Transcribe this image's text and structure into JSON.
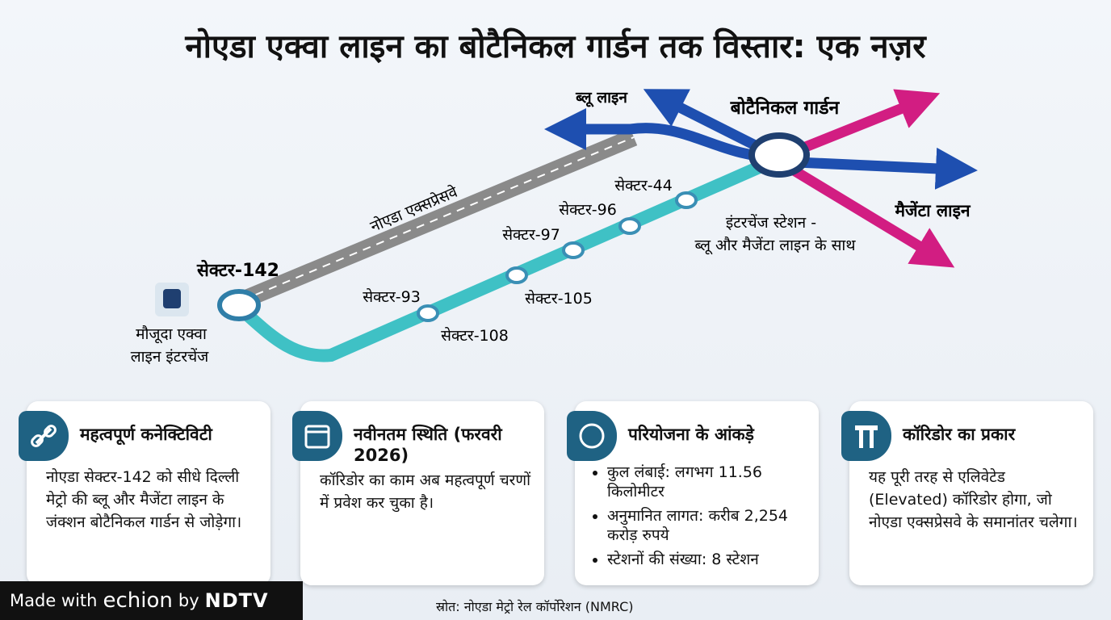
{
  "title": "नोएडा एक्वा लाइन का बोटैनिकल गार्डन तक विस्तार: एक नज़र",
  "map": {
    "blue_line": "ब्लू लाइन",
    "magenta_line": "मैजेंटा लाइन",
    "terminal": "बोटैनिकल गार्डन",
    "interchange_note": [
      "इंटरचेंज स्टेशन -",
      "ब्लू और मैजेंटा लाइन के साथ"
    ],
    "expressway": "नोएडा एक्सप्रेसवे",
    "start": "सेक्टर-142",
    "start_note": [
      "मौजूदा एक्वा",
      "लाइन इंटरचेंज"
    ],
    "stations": [
      "सेक्टर-93",
      "सेक्टर-108",
      "सेक्टर-105",
      "सेक्टर-97",
      "सेक्टर-96",
      "सेक्टर-44"
    ]
  },
  "cards": [
    {
      "title": "महत्वपूर्ण कनेक्टिविटी",
      "body": "नोएडा सेक्टर-142 को सीधे दिल्ली मेट्रो की ब्लू और मैजेंटा लाइन के जंक्शन बोटैनिकल गार्डन से जोड़ेगा।"
    },
    {
      "title": "नवीनतम स्थिति (फरवरी 2026)",
      "body": "कॉरिडोर का काम अब महत्वपूर्ण चरणों में प्रवेश कर चुका है।"
    },
    {
      "title": "परियोजना के आंकड़े",
      "items": [
        "कुल लंबाई: लगभग 11.56 किलोमीटर",
        "अनुमानित लागत: करीब 2,254 करोड़ रुपये",
        "स्टेशनों की संख्या: 8 स्टेशन"
      ]
    },
    {
      "title": "कॉरिडोर का प्रकार",
      "body": "यह पूरी तरह से एलिवेटेड (Elevated) कॉरिडोर होगा, जो नोएडा एक्सप्रेसवे के समानांतर चलेगा।"
    }
  ],
  "source": "स्रोत: नोएडा मेट्रो रेल कॉर्पोरेशन (NMRC)",
  "badge": {
    "made": "Made with",
    "brand": "echion",
    "by": "by",
    "org": "NDTV"
  }
}
